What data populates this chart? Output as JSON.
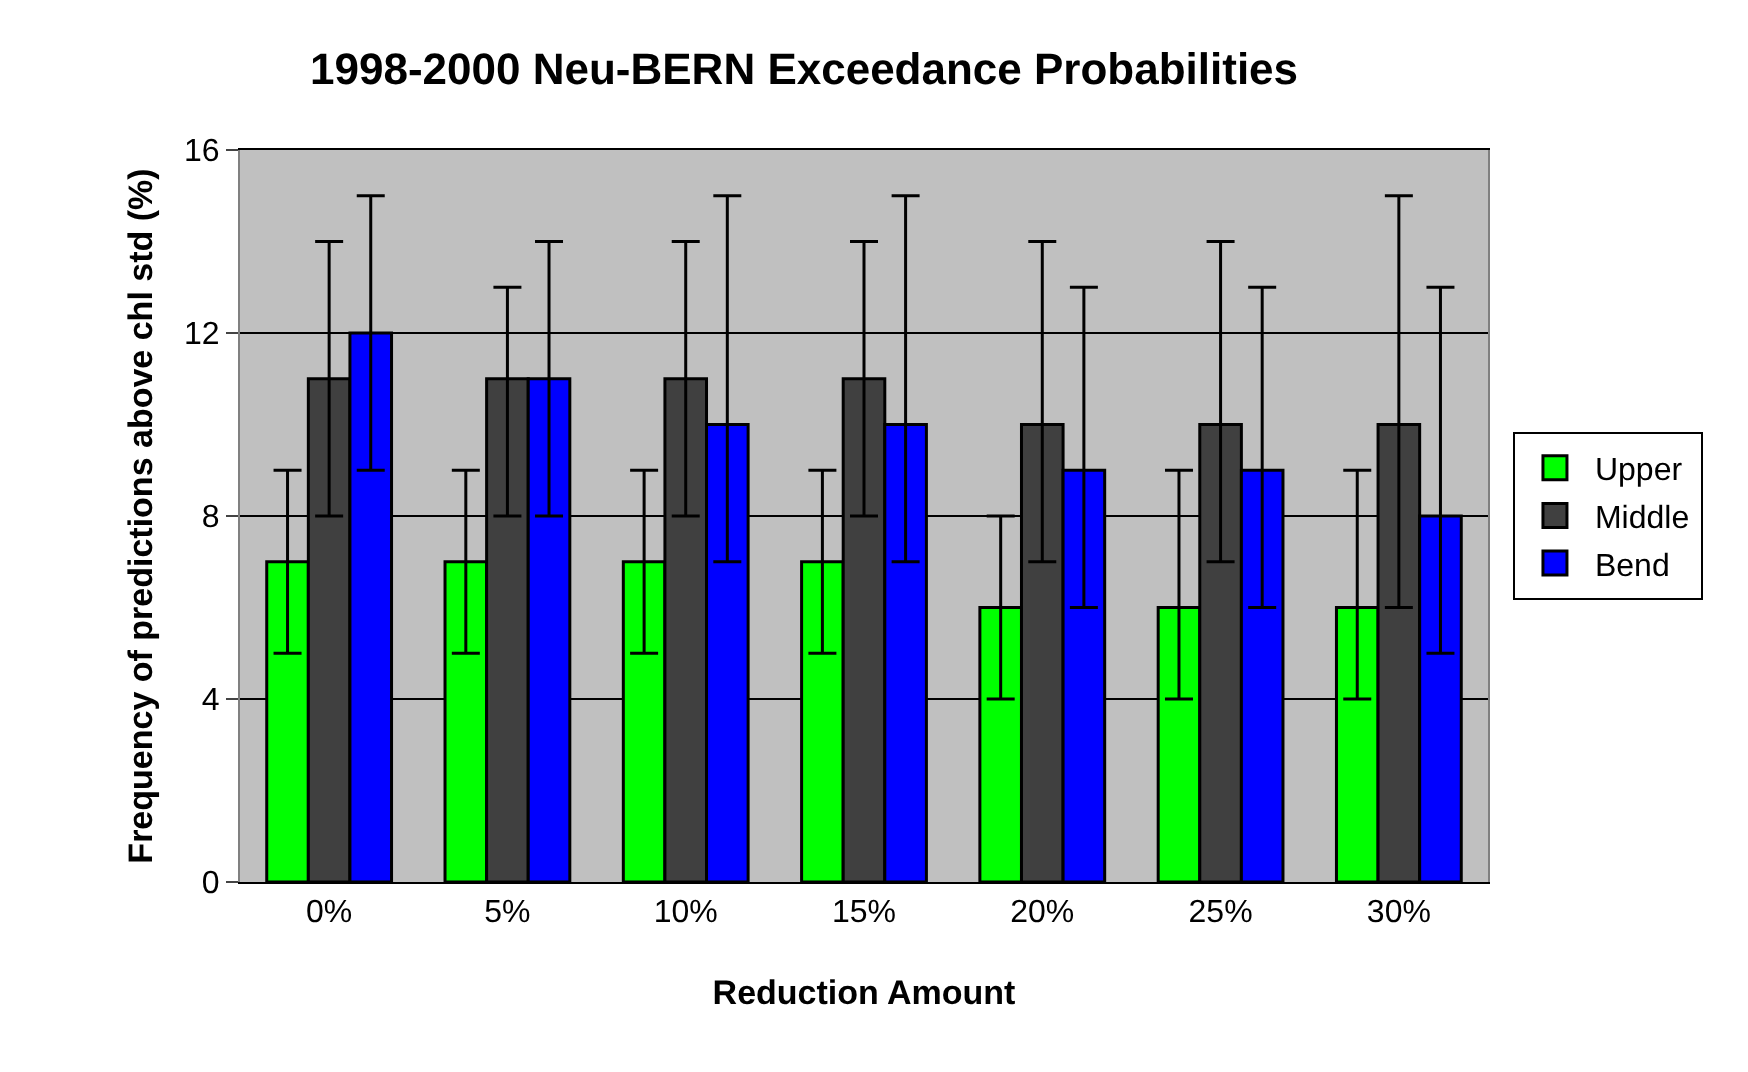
{
  "chart_data": {
    "type": "bar",
    "title": "1998-2000 Neu-BERN Exceedance Probabilities",
    "xlabel": "Reduction Amount",
    "ylabel": "Frequency of predictions above chl std (%)",
    "categories": [
      "0%",
      "5%",
      "10%",
      "15%",
      "20%",
      "25%",
      "30%"
    ],
    "series": [
      {
        "name": "Upper",
        "color": "#00ff00",
        "values": [
          7,
          7,
          7,
          7,
          6,
          6,
          6
        ],
        "errors": [
          [
            5,
            9
          ],
          [
            5,
            9
          ],
          [
            5,
            9
          ],
          [
            5,
            9
          ],
          [
            4,
            8
          ],
          [
            4,
            9
          ],
          [
            4,
            9
          ]
        ]
      },
      {
        "name": "Middle",
        "color": "#404040",
        "values": [
          11,
          11,
          11,
          11,
          10,
          10,
          10
        ],
        "errors": [
          [
            8,
            14
          ],
          [
            8,
            13
          ],
          [
            8,
            14
          ],
          [
            8,
            14
          ],
          [
            7,
            14
          ],
          [
            7,
            14
          ],
          [
            6,
            15
          ]
        ]
      },
      {
        "name": "Bend",
        "color": "#0000ff",
        "values": [
          12,
          11,
          10,
          10,
          9,
          9,
          8
        ],
        "errors": [
          [
            9,
            15
          ],
          [
            8,
            14
          ],
          [
            7,
            15
          ],
          [
            7,
            15
          ],
          [
            6,
            13
          ],
          [
            6,
            13
          ],
          [
            5,
            13
          ]
        ]
      }
    ],
    "ylim": [
      0,
      16
    ],
    "yticks": [
      0,
      4,
      8,
      12,
      16
    ],
    "grid": "y",
    "legend": "right"
  }
}
